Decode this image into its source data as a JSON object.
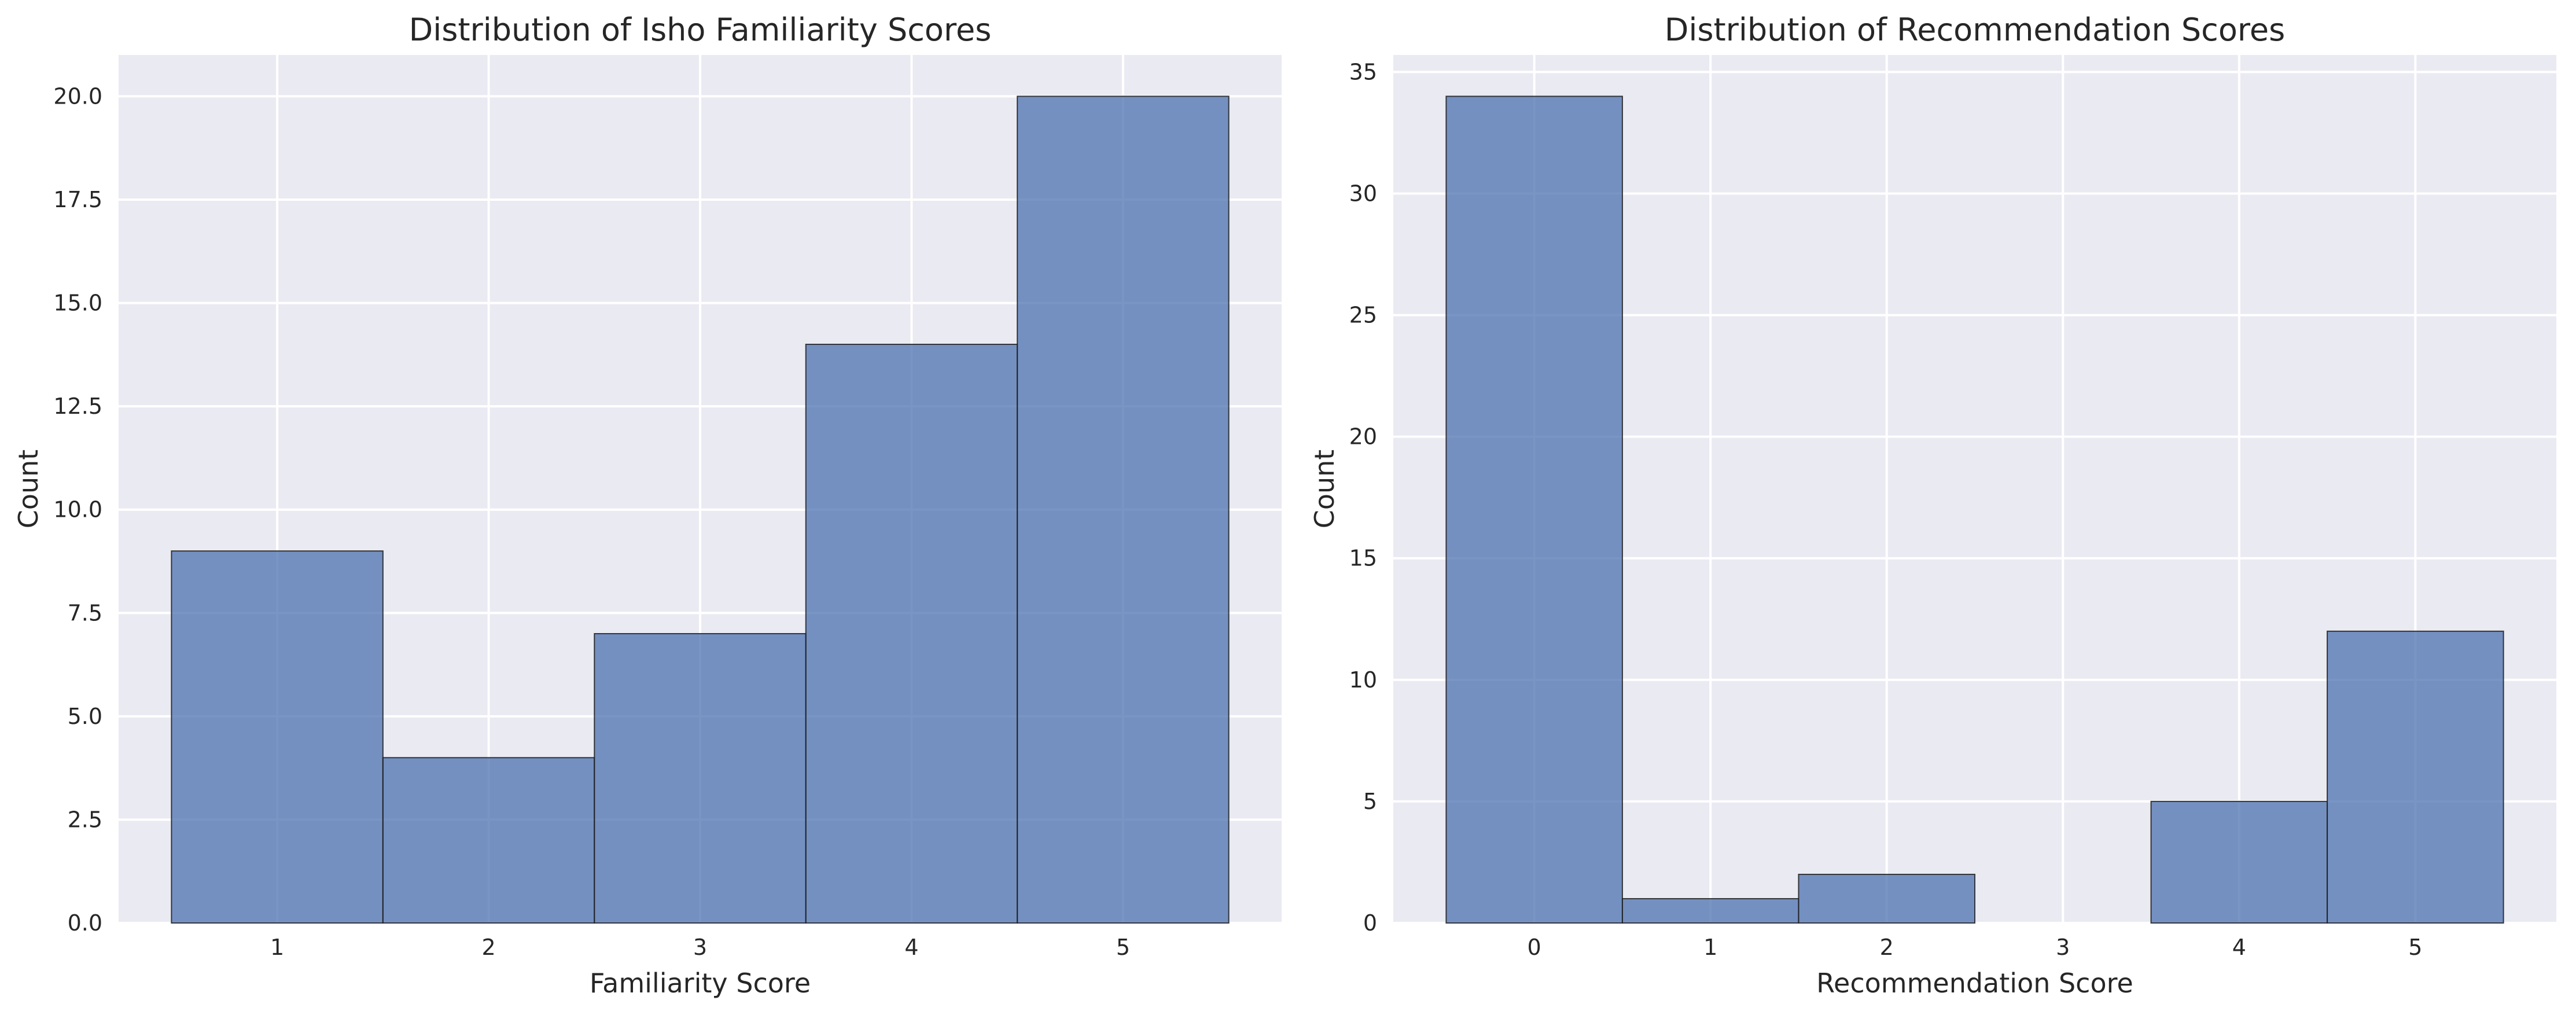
{
  "chart_data": [
    {
      "type": "bar",
      "title": "Distribution of Isho Familiarity Scores",
      "xlabel": "Familiarity Score",
      "ylabel": "Count",
      "categories": [
        "1",
        "2",
        "3",
        "4",
        "5"
      ],
      "values": [
        9,
        4,
        7,
        14,
        20
      ],
      "yticks": [
        "0.0",
        "2.5",
        "5.0",
        "7.5",
        "10.0",
        "12.5",
        "15.0",
        "17.5",
        "20.0"
      ],
      "ylim": [
        0,
        21
      ],
      "grid": true,
      "colors": {
        "bar": "#4c72b0",
        "background": "#eaeaf2"
      }
    },
    {
      "type": "bar",
      "title": "Distribution of Recommendation Scores",
      "xlabel": "Recommendation Score",
      "ylabel": "Count",
      "categories": [
        "0",
        "1",
        "2",
        "3",
        "4",
        "5"
      ],
      "values": [
        34,
        1,
        2,
        0,
        5,
        12
      ],
      "yticks": [
        "0",
        "5",
        "10",
        "15",
        "20",
        "25",
        "30",
        "35"
      ],
      "ylim": [
        0,
        35.7
      ],
      "grid": true,
      "colors": {
        "bar": "#4c72b0",
        "background": "#eaeaf2"
      }
    }
  ]
}
